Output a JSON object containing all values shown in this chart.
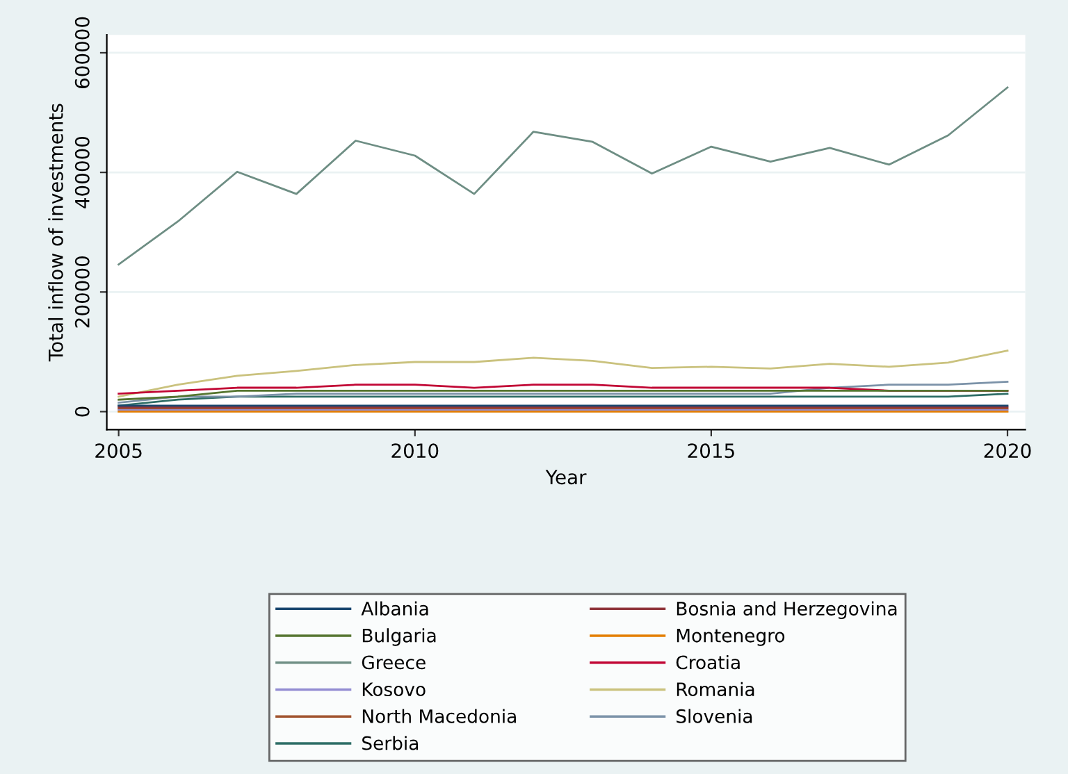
{
  "chart_data": {
    "type": "line",
    "xlabel": "Year",
    "ylabel": "Total inflow of investments",
    "x": [
      2005,
      2006,
      2007,
      2008,
      2009,
      2010,
      2011,
      2012,
      2013,
      2014,
      2015,
      2016,
      2017,
      2018,
      2019,
      2020
    ],
    "xlim": [
      2004.8,
      2020.3
    ],
    "xticks": [
      2005,
      2010,
      2015,
      2020
    ],
    "ylim": [
      -30000,
      630000
    ],
    "yticks": [
      0,
      200000,
      400000,
      600000
    ],
    "grid": "y",
    "legend": "bottom",
    "marker": "none",
    "line_style": "solid",
    "series": [
      {
        "name": "Albania",
        "color": "#1a476f",
        "values": [
          10000,
          10000,
          10000,
          10000,
          10000,
          10000,
          10000,
          10000,
          10000,
          10000,
          10000,
          10000,
          10000,
          10000,
          10000,
          10000
        ]
      },
      {
        "name": "Bosnia and Herzegovina",
        "color": "#90353b",
        "values": [
          7500,
          7500,
          7500,
          7500,
          7500,
          7500,
          7500,
          7500,
          7500,
          7500,
          7500,
          7500,
          7500,
          7500,
          7500,
          7500
        ]
      },
      {
        "name": "Bulgaria",
        "color": "#55752f",
        "values": [
          20000,
          25000,
          35000,
          35000,
          35000,
          35000,
          35000,
          35000,
          35000,
          35000,
          35000,
          35000,
          35000,
          35000,
          35000,
          35000
        ]
      },
      {
        "name": "Montenegro",
        "color": "#e37e00",
        "values": [
          0,
          0,
          0,
          0,
          0,
          0,
          0,
          0,
          0,
          0,
          0,
          0,
          0,
          0,
          0,
          0
        ]
      },
      {
        "name": "Greece",
        "color": "#6e8e84",
        "values": [
          246000,
          318000,
          401000,
          364000,
          453000,
          428000,
          364000,
          468000,
          451000,
          398000,
          443000,
          418000,
          441000,
          413000,
          462000,
          542000
        ]
      },
      {
        "name": "Croatia",
        "color": "#c10534",
        "values": [
          30000,
          35000,
          40000,
          40000,
          45000,
          45000,
          40000,
          45000,
          45000,
          40000,
          40000,
          40000,
          40000,
          35000,
          35000,
          35000
        ]
      },
      {
        "name": "Kosovo",
        "color": "#938dd2",
        "values": [
          2500,
          2500,
          2500,
          2500,
          2500,
          2500,
          2500,
          2500,
          2500,
          2500,
          2500,
          2500,
          2500,
          2500,
          2500,
          2500
        ]
      },
      {
        "name": "Romania",
        "color": "#cac27e",
        "values": [
          25000,
          45000,
          60000,
          68000,
          78000,
          83000,
          83000,
          90000,
          85000,
          73000,
          75000,
          72000,
          80000,
          75000,
          82000,
          102000
        ]
      },
      {
        "name": "North Macedonia",
        "color": "#a0522d",
        "values": [
          5000,
          5000,
          5000,
          5000,
          5000,
          5000,
          5000,
          5000,
          5000,
          5000,
          5000,
          5000,
          5000,
          5000,
          5000,
          5000
        ]
      },
      {
        "name": "Slovenia",
        "color": "#7b92a8",
        "values": [
          15000,
          25000,
          25000,
          30000,
          30000,
          30000,
          30000,
          30000,
          30000,
          30000,
          30000,
          30000,
          40000,
          45000,
          45000,
          50000
        ]
      },
      {
        "name": "Serbia",
        "color": "#2d6d66",
        "values": [
          10000,
          20000,
          25000,
          25000,
          25000,
          25000,
          25000,
          25000,
          25000,
          25000,
          25000,
          25000,
          25000,
          25000,
          25000,
          30000
        ]
      }
    ]
  }
}
